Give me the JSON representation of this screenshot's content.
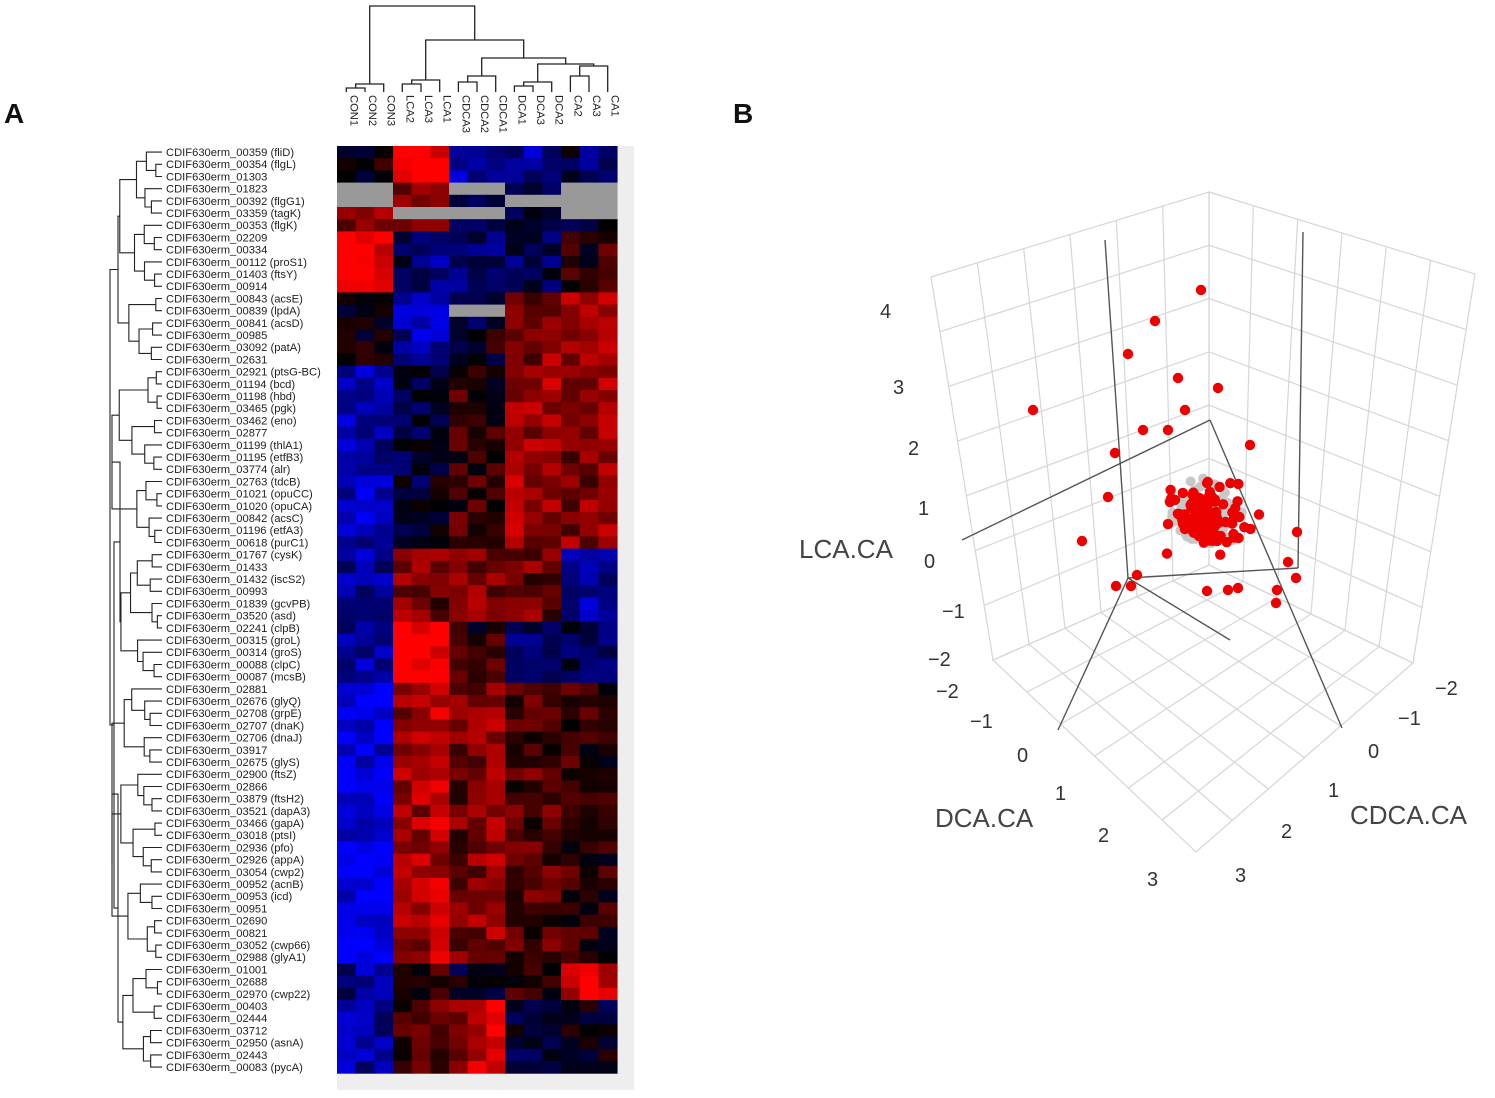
{
  "panels": {
    "a": "A",
    "b": "B"
  },
  "colors": {
    "high": "#ff0000",
    "low": "#0000ff",
    "mid": "#000000",
    "na": "#999999",
    "point_sig": "#ee0000",
    "point_other": "#c8c8c8",
    "grid": "#d6d6d6",
    "axisline": "#555555"
  },
  "chart_data": [
    {
      "type": "heatmap",
      "columns": [
        "CON1",
        "CON2",
        "CON3",
        "LCA2",
        "LCA3",
        "LCA1",
        "CDCA3",
        "CDCA2",
        "CDCA1",
        "DCA1",
        "DCA3",
        "DCA2",
        "CA2",
        "CA3",
        "CA1"
      ],
      "rows": [
        "CDIF630erm_00359 (fliD)",
        "CDIF630erm_00354 (flgL)",
        "CDIF630erm_01303",
        "CDIF630erm_01823",
        "CDIF630erm_00392 (flgG1)",
        "CDIF630erm_03359 (tagK)",
        "CDIF630erm_00353 (flgK)",
        "CDIF630erm_02209",
        "CDIF630erm_00334",
        "CDIF630erm_00112 (proS1)",
        "CDIF630erm_01403 (ftsY)",
        "CDIF630erm_00914",
        "CDIF630erm_00843 (acsE)",
        "CDIF630erm_00839 (lpdA)",
        "CDIF630erm_00841 (acsD)",
        "CDIF630erm_00985",
        "CDIF630erm_03092 (patA)",
        "CDIF630erm_02631",
        "CDIF630erm_02921 (ptsG-BC)",
        "CDIF630erm_01194 (bcd)",
        "CDIF630erm_01198 (hbd)",
        "CDIF630erm_03465 (pgk)",
        "CDIF630erm_03462 (eno)",
        "CDIF630erm_02877",
        "CDIF630erm_01199 (thlA1)",
        "CDIF630erm_01195 (etfB3)",
        "CDIF630erm_03774 (alr)",
        "CDIF630erm_02763 (tdcB)",
        "CDIF630erm_01021 (opuCC)",
        "CDIF630erm_01020 (opuCA)",
        "CDIF630erm_00842 (acsC)",
        "CDIF630erm_01196 (etfA3)",
        "CDIF630erm_00618 (purC1)",
        "CDIF630erm_01767 (cysK)",
        "CDIF630erm_01433",
        "CDIF630erm_01432 (iscS2)",
        "CDIF630erm_00993",
        "CDIF630erm_01839 (gcvPB)",
        "CDIF630erm_03520 (asd)",
        "CDIF630erm_02241 (clpB)",
        "CDIF630erm_00315 (groL)",
        "CDIF630erm_00314 (groS)",
        "CDIF630erm_00088 (clpC)",
        "CDIF630erm_00087 (mcsB)",
        "CDIF630erm_02881",
        "CDIF630erm_02676 (glyQ)",
        "CDIF630erm_02708 (grpE)",
        "CDIF630erm_02707 (dnaK)",
        "CDIF630erm_02706 (dnaJ)",
        "CDIF630erm_03917",
        "CDIF630erm_02675 (glyS)",
        "CDIF630erm_02900 (ftsZ)",
        "CDIF630erm_02866",
        "CDIF630erm_03879 (ftsH2)",
        "CDIF630erm_03521 (dapA3)",
        "CDIF630erm_03466 (gapA)",
        "CDIF630erm_03018 (ptsI)",
        "CDIF630erm_02936 (pfo)",
        "CDIF630erm_02926 (appA)",
        "CDIF630erm_03054 (cwp2)",
        "CDIF630erm_00952 (acnB)",
        "CDIF630erm_00953 (icd)",
        "CDIF630erm_00951",
        "CDIF630erm_02690",
        "CDIF630erm_00821",
        "CDIF630erm_03052 (cwp66)",
        "CDIF630erm_02988 (glyA1)",
        "CDIF630erm_01001",
        "CDIF630erm_02688",
        "CDIF630erm_02970 (cwp22)",
        "CDIF630erm_00403",
        "CDIF630erm_02444",
        "CDIF630erm_03712",
        "CDIF630erm_02950 (asnA)",
        "CDIF630erm_02443",
        "CDIF630erm_00083 (pycA)"
      ],
      "group_pattern": [
        {
          "rows": [
            0,
            2
          ],
          "levels": [
            0.1,
            0.05,
            0.0,
            1,
            1,
            1,
            -0.6,
            -0.6,
            -0.5,
            -0.5,
            -0.6,
            -0.5,
            -0.2,
            -0.4,
            -0.5
          ]
        },
        {
          "rows": [
            3,
            6
          ],
          "levels": [
            0.5,
            0.5,
            0.5,
            0.5,
            0.4,
            0.4,
            -0.2,
            -0.2,
            -0.2,
            -0.3,
            -0.3,
            -0.3,
            -0.2,
            -0.2,
            -0.2
          ]
        },
        {
          "rows": [
            7,
            11
          ],
          "levels": [
            0.95,
            0.95,
            0.95,
            -0.3,
            -0.5,
            -0.6,
            -0.4,
            -0.4,
            -0.5,
            -0.3,
            -0.3,
            -0.3,
            0.2,
            0.1,
            0.3
          ]
        },
        {
          "rows": [
            12,
            17
          ],
          "levels": [
            0.0,
            0.0,
            0.05,
            -0.6,
            -0.7,
            -0.7,
            -0.1,
            -0.2,
            0.0,
            0.4,
            0.5,
            0.6,
            0.6,
            0.7,
            0.6
          ]
        },
        {
          "rows": [
            18,
            32
          ],
          "levels": [
            -0.7,
            -0.7,
            -0.6,
            -0.2,
            -0.2,
            -0.1,
            0.2,
            0.2,
            0.1,
            0.6,
            0.6,
            0.6,
            0.5,
            0.5,
            0.6
          ]
        },
        {
          "rows": [
            33,
            38
          ],
          "levels": [
            -0.6,
            -0.6,
            -0.6,
            0.5,
            0.5,
            0.4,
            0.4,
            0.5,
            0.5,
            0.5,
            0.4,
            0.4,
            -0.6,
            -0.6,
            -0.6
          ]
        },
        {
          "rows": [
            39,
            43
          ],
          "levels": [
            -0.6,
            -0.6,
            -0.6,
            1,
            1,
            1,
            0.2,
            0.1,
            0.2,
            -0.4,
            -0.4,
            -0.4,
            -0.3,
            -0.3,
            -0.3
          ]
        },
        {
          "rows": [
            44,
            66
          ],
          "levels": [
            -0.9,
            -0.9,
            -0.85,
            0.6,
            0.6,
            0.7,
            0.4,
            0.5,
            0.6,
            0.3,
            0.3,
            0.3,
            0.2,
            0.2,
            0.1
          ]
        },
        {
          "rows": [
            67,
            69
          ],
          "levels": [
            -0.5,
            -0.6,
            -0.5,
            0.1,
            0.2,
            0.3,
            -0.1,
            0.0,
            0.0,
            0.2,
            0.1,
            0.2,
            0.8,
            0.8,
            0.8
          ]
        },
        {
          "rows": [
            70,
            75
          ],
          "levels": [
            -0.6,
            -0.6,
            -0.6,
            0.3,
            0.3,
            0.4,
            0.6,
            0.7,
            0.9,
            -0.2,
            -0.2,
            -0.2,
            0.0,
            -0.1,
            -0.1
          ]
        }
      ],
      "na_cells": [
        [
          3,
          0
        ],
        [
          3,
          1
        ],
        [
          3,
          2
        ],
        [
          4,
          0
        ],
        [
          4,
          1
        ],
        [
          4,
          2
        ],
        [
          3,
          6
        ],
        [
          3,
          7
        ],
        [
          3,
          8
        ],
        [
          3,
          12
        ],
        [
          3,
          13
        ],
        [
          3,
          14
        ],
        [
          4,
          12
        ],
        [
          4,
          13
        ],
        [
          4,
          14
        ],
        [
          4,
          9
        ],
        [
          4,
          10
        ],
        [
          4,
          11
        ],
        [
          5,
          3
        ],
        [
          5,
          4
        ],
        [
          5,
          5
        ],
        [
          5,
          6
        ],
        [
          5,
          7
        ],
        [
          5,
          8
        ],
        [
          5,
          12
        ],
        [
          5,
          13
        ],
        [
          5,
          14
        ],
        [
          13,
          6
        ],
        [
          13,
          7
        ],
        [
          13,
          8
        ]
      ]
    },
    {
      "type": "scatter",
      "xlabel": "DCA.CA",
      "ylabel": "CDCA.CA",
      "zlabel": "LCA.CA",
      "x_ticks": [
        -2,
        -1,
        0,
        1,
        2,
        3
      ],
      "y_ticks": [
        -2,
        -1,
        0,
        1,
        2,
        3
      ],
      "z_ticks": [
        -2,
        -1,
        0,
        1,
        2,
        3,
        4
      ],
      "x_range": [
        -2,
        3.2
      ],
      "y_range": [
        -2,
        3.2
      ],
      "z_range": [
        -2,
        4.3
      ]
    }
  ]
}
